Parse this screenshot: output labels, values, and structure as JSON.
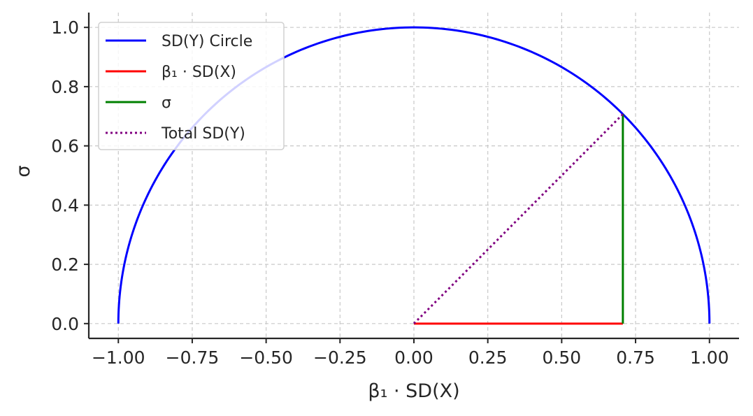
{
  "chart_data": {
    "type": "line",
    "title": "",
    "xlabel": "β₁ · SD(X)",
    "ylabel": "σ",
    "xlim": [
      -1.1,
      1.1
    ],
    "ylim": [
      -0.05,
      1.05
    ],
    "xticks": [
      -1.0,
      -0.75,
      -0.5,
      -0.25,
      0.0,
      0.25,
      0.5,
      0.75,
      1.0
    ],
    "xtick_labels": [
      "−1.00",
      "−0.75",
      "−0.50",
      "−0.25",
      "0.00",
      "0.25",
      "0.50",
      "0.75",
      "1.00"
    ],
    "yticks": [
      0.0,
      0.2,
      0.4,
      0.6,
      0.8,
      1.0
    ],
    "ytick_labels": [
      "0.0",
      "0.2",
      "0.4",
      "0.6",
      "0.8",
      "1.0"
    ],
    "grid": true,
    "legend_position": "top-left",
    "series": [
      {
        "name": "SD(Y) Circle",
        "kind": "semicircle",
        "radius": 1.0,
        "color": "#0000ff",
        "style": "solid"
      },
      {
        "name": "β₁ · SD(X)",
        "kind": "segment",
        "x": [
          0.0,
          0.707
        ],
        "y": [
          0.0,
          0.0
        ],
        "color": "#ff0000",
        "style": "solid"
      },
      {
        "name": "σ",
        "kind": "segment",
        "x": [
          0.707,
          0.707
        ],
        "y": [
          0.0,
          0.707
        ],
        "color": "#008000",
        "style": "solid"
      },
      {
        "name": "Total SD(Y)",
        "kind": "segment",
        "x": [
          0.0,
          0.707
        ],
        "y": [
          0.0,
          0.707
        ],
        "color": "#800080",
        "style": "dotted"
      }
    ]
  }
}
